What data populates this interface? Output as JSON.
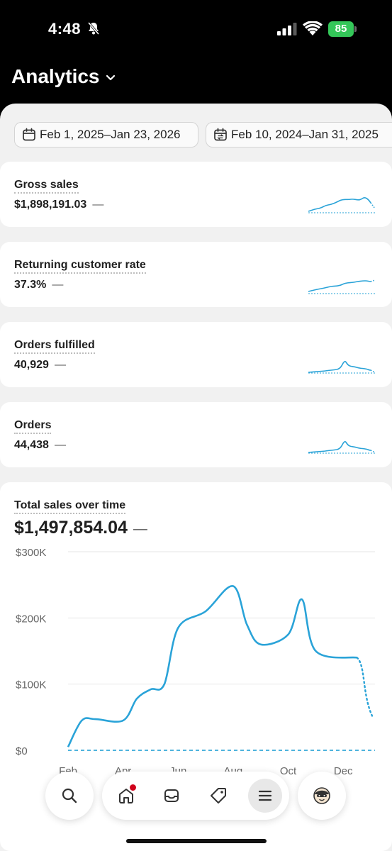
{
  "status": {
    "time": "4:48",
    "battery": "85"
  },
  "header": {
    "title": "Analytics"
  },
  "date_ranges": {
    "primary": "Feb 1, 2025–Jan 23, 2026",
    "comparison": "Feb 10, 2024–Jan 31, 2025"
  },
  "metrics": [
    {
      "label": "Gross sales",
      "value": "$1,898,191.03",
      "change": "—"
    },
    {
      "label": "Returning customer rate",
      "value": "37.3%",
      "change": "—"
    },
    {
      "label": "Orders fulfilled",
      "value": "40,929",
      "change": "—"
    },
    {
      "label": "Orders",
      "value": "44,438",
      "change": "—"
    }
  ],
  "chart_card": {
    "label": "Total sales over time",
    "total": "$1,497,854.04",
    "change": "—"
  },
  "chart_data": {
    "type": "line",
    "title": "Total sales over time",
    "x": [
      "Feb",
      "Mar",
      "Apr",
      "May",
      "Jun",
      "Jul",
      "Aug",
      "Sep",
      "Oct",
      "Nov",
      "Dec",
      "Jan"
    ],
    "x_tick_labels": [
      "Feb",
      "Apr",
      "Jun",
      "Aug",
      "Oct",
      "Dec"
    ],
    "y_tick_labels": [
      "$0",
      "$100K",
      "$200K",
      "$300K"
    ],
    "ylim": [
      0,
      300000
    ],
    "grid": true,
    "series": [
      {
        "style": "solid",
        "points": [
          [
            "Feb",
            5000
          ],
          [
            "Feb",
            45000
          ],
          [
            "Mar",
            47000
          ],
          [
            "Apr",
            45000
          ],
          [
            "Apr",
            78000
          ],
          [
            "May",
            92000
          ],
          [
            "May",
            100000
          ],
          [
            "Jun",
            185000
          ],
          [
            "Jul",
            210000
          ],
          [
            "Aug",
            248000
          ],
          [
            "Aug",
            190000
          ],
          [
            "Sep",
            160000
          ],
          [
            "Oct",
            175000
          ],
          [
            "Oct",
            228000
          ],
          [
            "Nov",
            150000
          ],
          [
            "Dec",
            140000
          ]
        ]
      },
      {
        "style": "dotted",
        "points": [
          [
            "Dec",
            140000
          ],
          [
            "Jan",
            52000
          ]
        ]
      },
      {
        "style": "dashed-baseline",
        "points": [
          [
            "Feb",
            0
          ],
          [
            "Jan",
            0
          ]
        ]
      }
    ]
  },
  "tabbar": {
    "items": [
      "search",
      "home",
      "inbox",
      "products",
      "menu",
      "store"
    ]
  },
  "colors": {
    "accent": "#2aa3d8",
    "baseline": "#4fb3dd",
    "notification": "#d0021b",
    "battery": "#34c759"
  }
}
